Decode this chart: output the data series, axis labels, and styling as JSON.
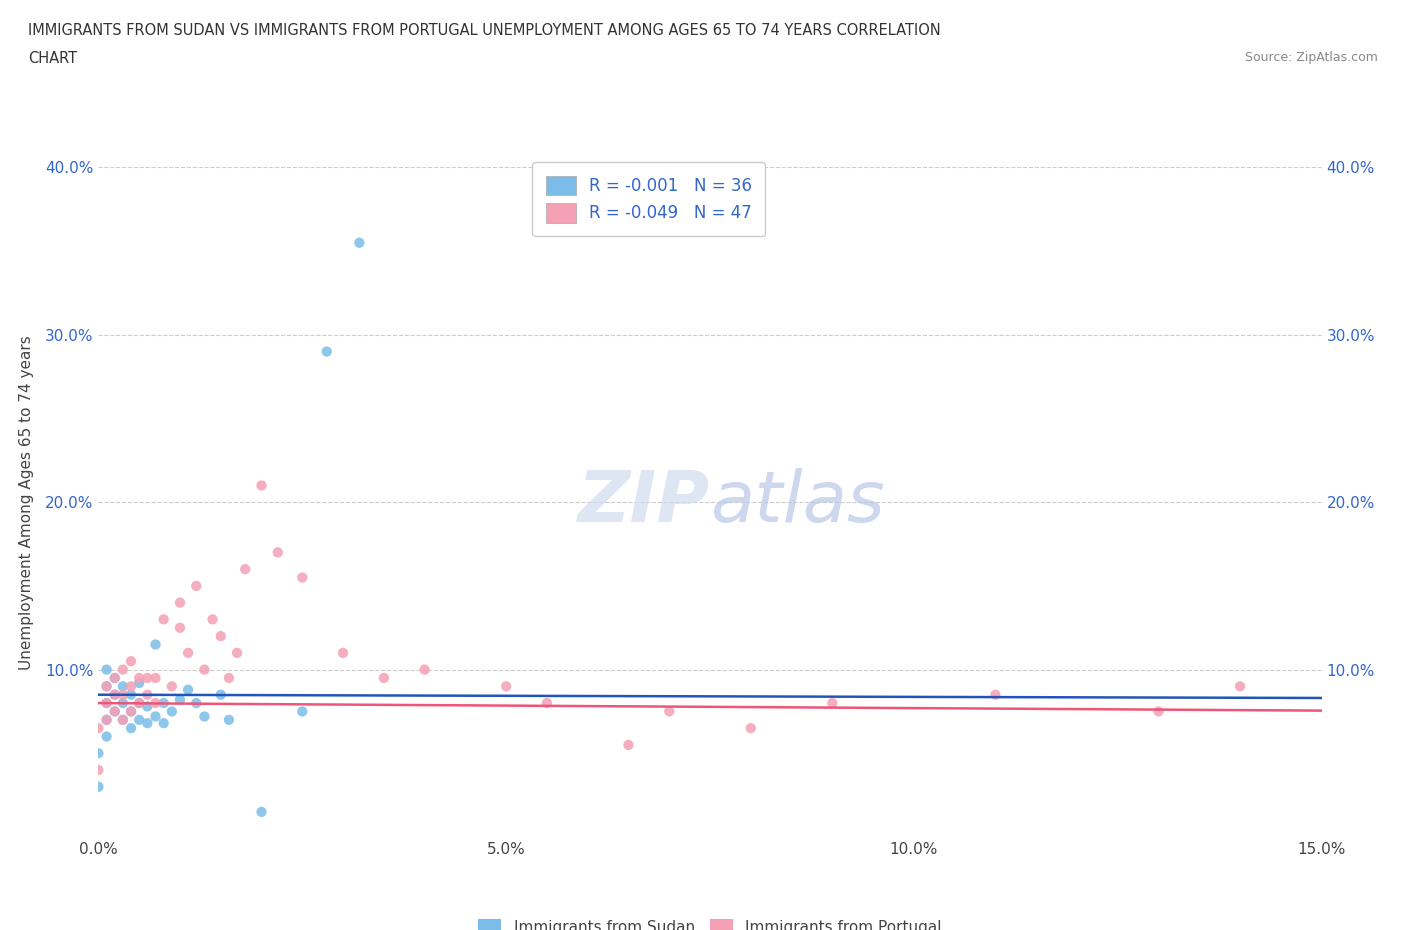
{
  "title_line1": "IMMIGRANTS FROM SUDAN VS IMMIGRANTS FROM PORTUGAL UNEMPLOYMENT AMONG AGES 65 TO 74 YEARS CORRELATION",
  "title_line2": "CHART",
  "source_text": "Source: ZipAtlas.com",
  "ylabel": "Unemployment Among Ages 65 to 74 years",
  "xlim": [
    0.0,
    0.15
  ],
  "ylim": [
    0.0,
    0.4
  ],
  "x_tick_labels": [
    "0.0%",
    "5.0%",
    "10.0%",
    "15.0%"
  ],
  "y_tick_labels": [
    "",
    "10.0%",
    "20.0%",
    "30.0%",
    "40.0%"
  ],
  "watermark_zip": "ZIP",
  "watermark_atlas": "atlas",
  "legend_label1": "R = -0.001   N = 36",
  "legend_label2": "R = -0.049   N = 47",
  "color_sudan": "#7BBDE8",
  "color_portugal": "#F4A0B5",
  "color_trendline_sudan": "#2255BB",
  "color_trendline_portugal": "#EE5577",
  "background_color": "#FFFFFF",
  "grid_color": "#CCCCCC",
  "sudan_x": [
    0.0,
    0.0,
    0.001,
    0.001,
    0.001,
    0.001,
    0.001,
    0.002,
    0.002,
    0.002,
    0.003,
    0.003,
    0.003,
    0.004,
    0.004,
    0.004,
    0.005,
    0.005,
    0.005,
    0.006,
    0.006,
    0.007,
    0.008,
    0.008,
    0.009,
    0.01,
    0.011,
    0.013,
    0.015,
    0.016,
    0.02,
    0.025,
    0.028,
    0.032,
    0.012,
    0.007
  ],
  "sudan_y": [
    0.05,
    0.03,
    0.06,
    0.07,
    0.08,
    0.09,
    0.1,
    0.075,
    0.085,
    0.095,
    0.07,
    0.08,
    0.09,
    0.065,
    0.075,
    0.085,
    0.07,
    0.08,
    0.092,
    0.068,
    0.078,
    0.072,
    0.068,
    0.08,
    0.075,
    0.082,
    0.088,
    0.072,
    0.085,
    0.07,
    0.015,
    0.075,
    0.29,
    0.355,
    0.08,
    0.115
  ],
  "portugal_x": [
    0.0,
    0.0,
    0.001,
    0.001,
    0.001,
    0.002,
    0.002,
    0.002,
    0.003,
    0.003,
    0.003,
    0.004,
    0.004,
    0.004,
    0.005,
    0.005,
    0.006,
    0.006,
    0.007,
    0.007,
    0.008,
    0.009,
    0.01,
    0.01,
    0.011,
    0.012,
    0.013,
    0.014,
    0.015,
    0.016,
    0.017,
    0.018,
    0.02,
    0.022,
    0.025,
    0.03,
    0.035,
    0.04,
    0.05,
    0.055,
    0.065,
    0.07,
    0.08,
    0.09,
    0.11,
    0.13,
    0.14
  ],
  "portugal_y": [
    0.065,
    0.04,
    0.07,
    0.08,
    0.09,
    0.075,
    0.085,
    0.095,
    0.07,
    0.085,
    0.1,
    0.075,
    0.09,
    0.105,
    0.08,
    0.095,
    0.085,
    0.095,
    0.08,
    0.095,
    0.13,
    0.09,
    0.125,
    0.14,
    0.11,
    0.15,
    0.1,
    0.13,
    0.12,
    0.095,
    0.11,
    0.16,
    0.21,
    0.17,
    0.155,
    0.11,
    0.095,
    0.1,
    0.09,
    0.08,
    0.055,
    0.075,
    0.065,
    0.08,
    0.085,
    0.075,
    0.09
  ]
}
